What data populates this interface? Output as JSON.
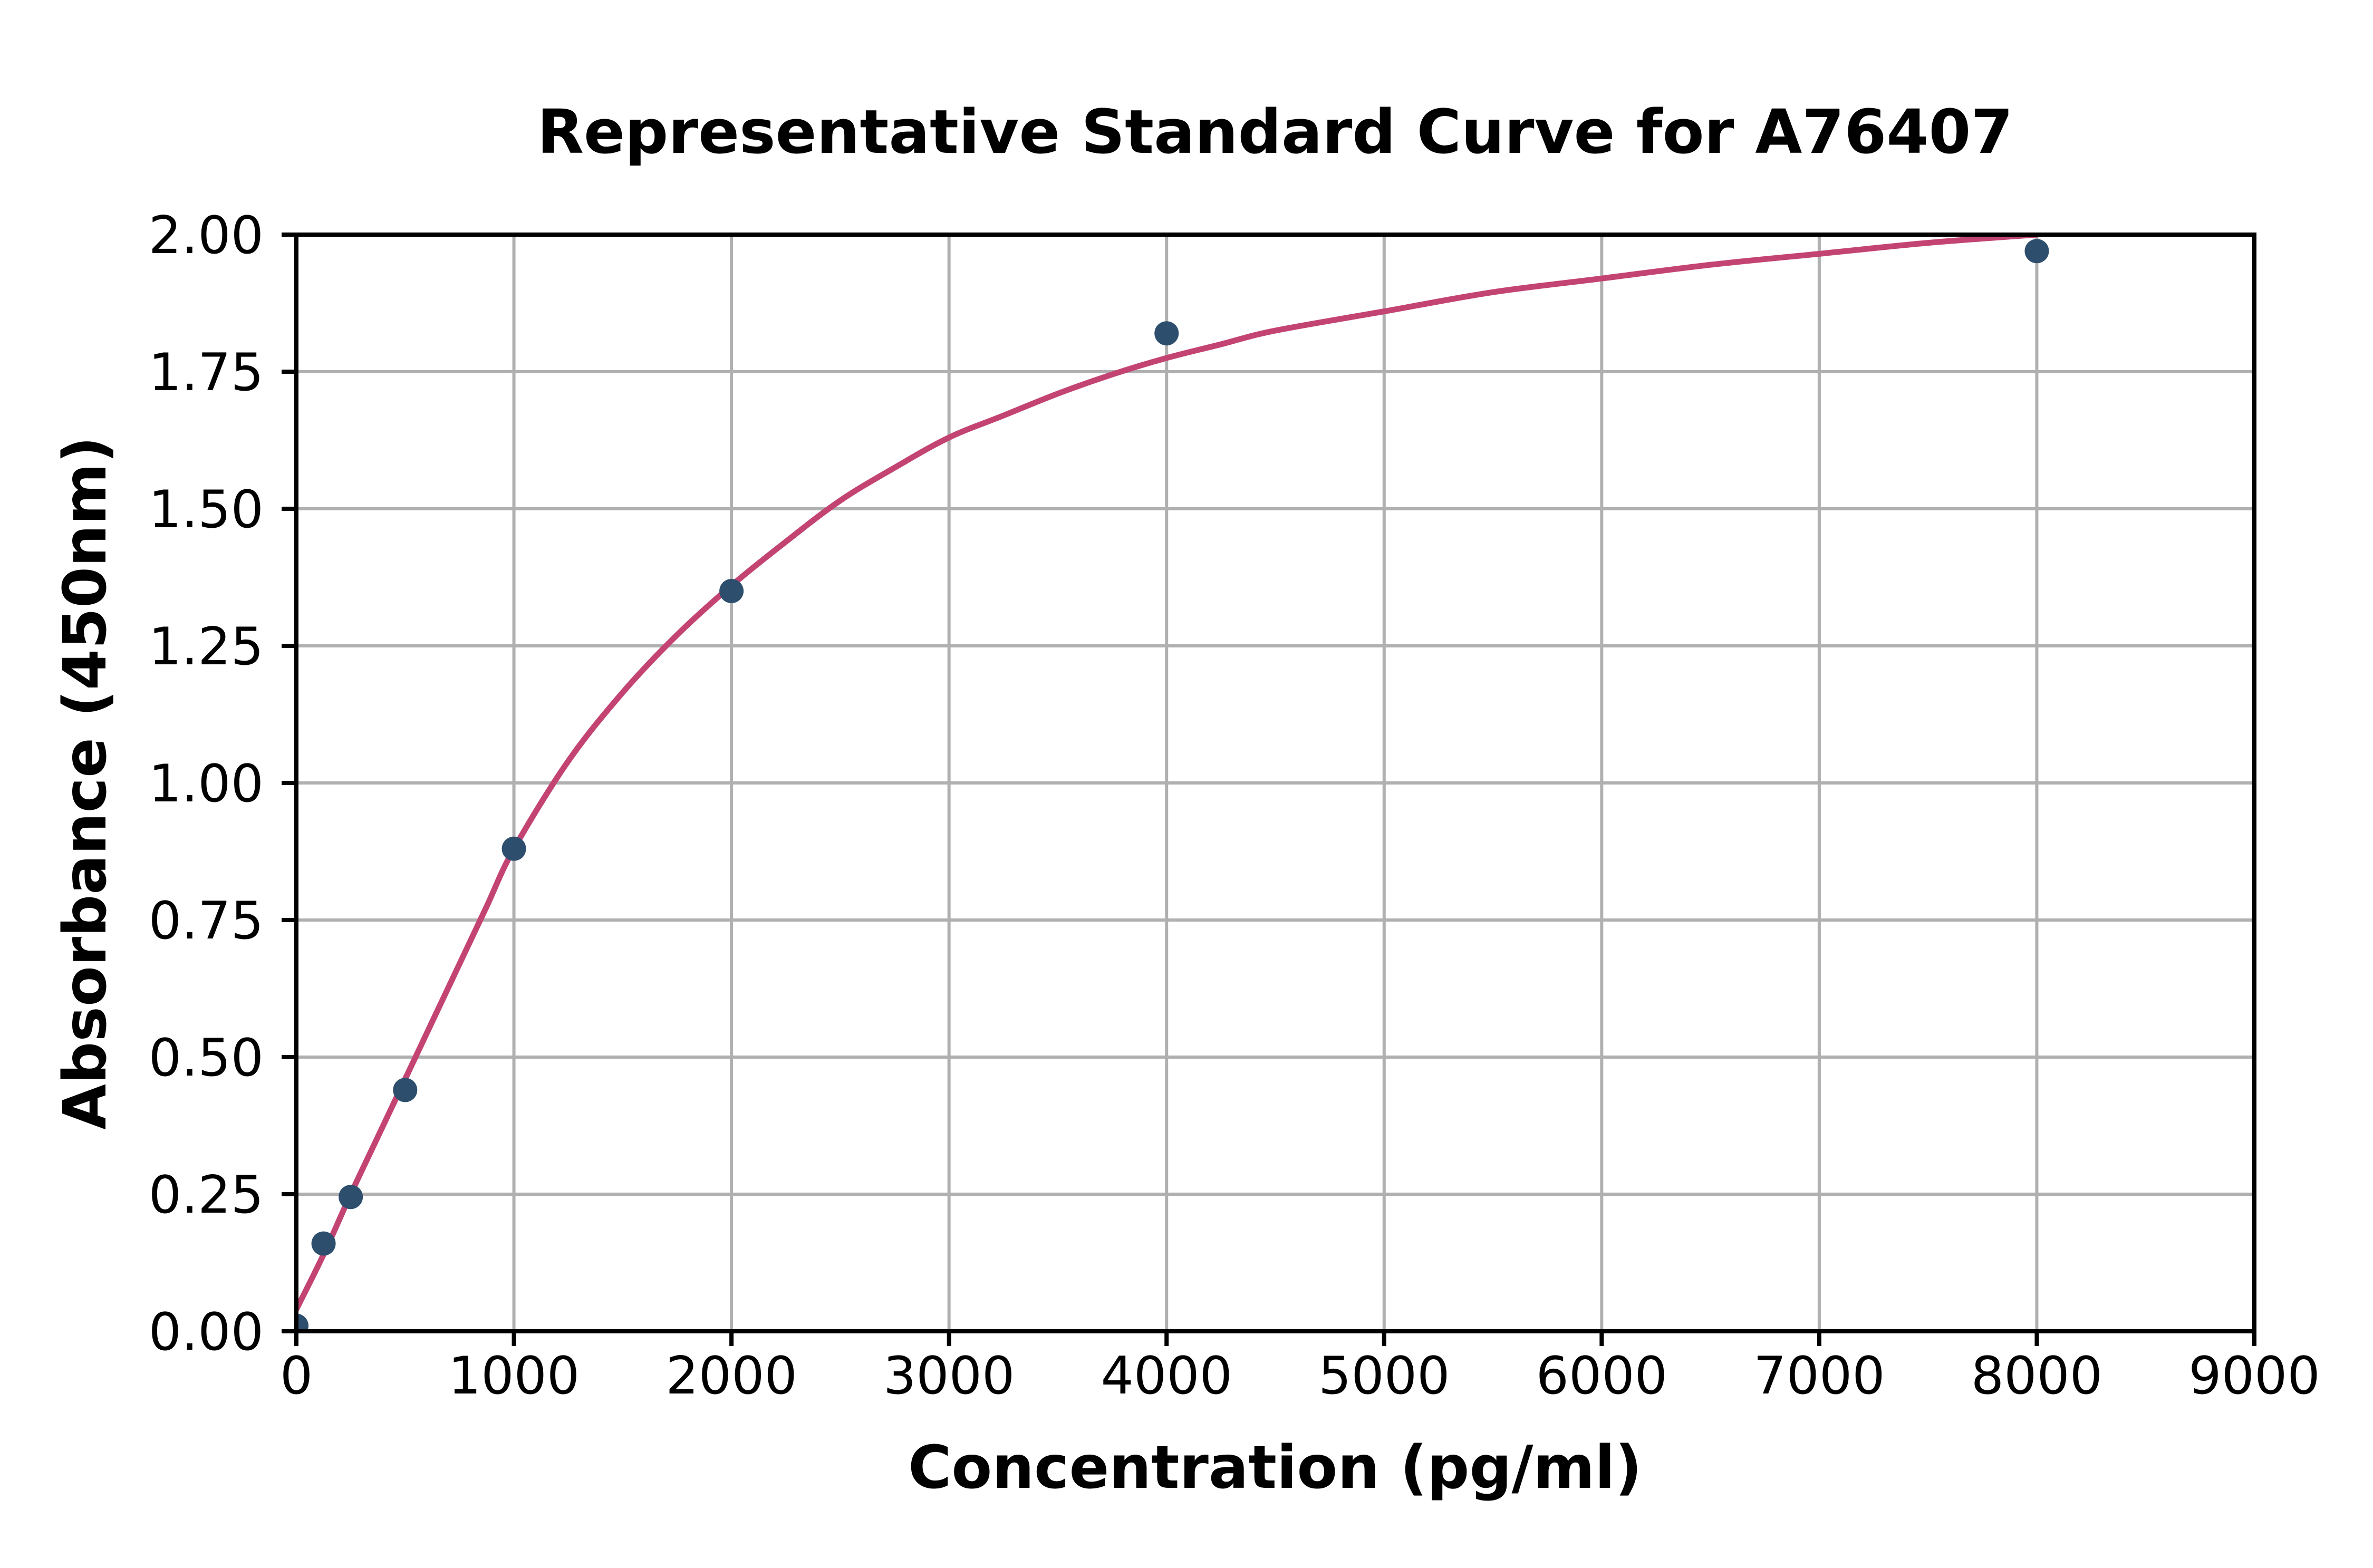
{
  "chart_data": {
    "type": "scatter",
    "title": "Representative Standard Curve for A76407",
    "xlabel": "Concentration (pg/ml)",
    "ylabel": "Absorbance (450nm)",
    "xlim": [
      0,
      9000
    ],
    "ylim": [
      0,
      2
    ],
    "x_ticks": [
      0,
      1000,
      2000,
      3000,
      4000,
      5000,
      6000,
      7000,
      8000,
      9000
    ],
    "x_tick_labels": [
      "0",
      "1000",
      "2000",
      "3000",
      "4000",
      "5000",
      "6000",
      "7000",
      "8000",
      "9000"
    ],
    "y_ticks": [
      0,
      0.25,
      0.5,
      0.75,
      1,
      1.25,
      1.5,
      1.75,
      2
    ],
    "y_tick_labels": [
      "0.00",
      "0.25",
      "0.50",
      "0.75",
      "1.00",
      "1.25",
      "1.50",
      "1.75",
      "2.00"
    ],
    "grid": true,
    "legend": false,
    "colors": {
      "marker": "#2E4E6E",
      "curve": "#C34472",
      "grid": "#B0B0B0",
      "axis": "#000000",
      "background": "#FFFFFF",
      "text": "#000000"
    },
    "series": [
      {
        "name": "standard data points",
        "kind": "scatter",
        "marker_radius": 23,
        "points": [
          [
            0,
            0.01
          ],
          [
            125,
            0.16
          ],
          [
            250,
            0.245
          ],
          [
            500,
            0.44
          ],
          [
            1000,
            0.88
          ],
          [
            2000,
            1.35
          ],
          [
            4000,
            1.82
          ],
          [
            8000,
            1.97
          ]
        ]
      },
      {
        "name": "fitted standard curve",
        "kind": "line",
        "stroke_width": 11,
        "points": [
          [
            0,
            0.04
          ],
          [
            125,
            0.14
          ],
          [
            250,
            0.25
          ],
          [
            375,
            0.355
          ],
          [
            500,
            0.46
          ],
          [
            625,
            0.565
          ],
          [
            750,
            0.67
          ],
          [
            875,
            0.775
          ],
          [
            1000,
            0.88
          ],
          [
            1250,
            1.04
          ],
          [
            1500,
            1.165
          ],
          [
            1750,
            1.27
          ],
          [
            2000,
            1.36
          ],
          [
            2250,
            1.44
          ],
          [
            2500,
            1.515
          ],
          [
            2750,
            1.575
          ],
          [
            3000,
            1.63
          ],
          [
            3250,
            1.67
          ],
          [
            3500,
            1.71
          ],
          [
            3750,
            1.745
          ],
          [
            4000,
            1.775
          ],
          [
            4250,
            1.8
          ],
          [
            4500,
            1.825
          ],
          [
            5000,
            1.86
          ],
          [
            5500,
            1.895
          ],
          [
            6000,
            1.92
          ],
          [
            6500,
            1.945
          ],
          [
            7000,
            1.965
          ],
          [
            7500,
            1.985
          ],
          [
            8000,
            2.0
          ]
        ]
      }
    ]
  }
}
